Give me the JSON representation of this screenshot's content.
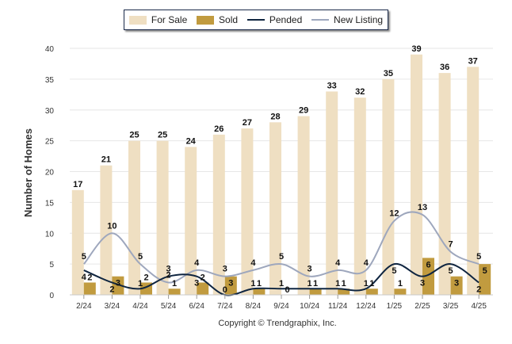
{
  "legend": {
    "for_sale": "For Sale",
    "sold": "Sold",
    "pended": "Pended",
    "new_listing": "New Listing"
  },
  "colors": {
    "for_sale": "#efdfc2",
    "sold": "#c19b3f",
    "pended": "#0f2540",
    "new_listing": "#9ea7bd",
    "grid": "#e6e6e6",
    "text": "#222222"
  },
  "copyright": "Copyright © Trendgraphix, Inc.",
  "chart_data": {
    "type": "bar",
    "ylabel": "Number of Homes",
    "xlabel": "",
    "ylim": [
      0,
      40
    ],
    "yticks": [
      0,
      5,
      10,
      15,
      20,
      25,
      30,
      35,
      40
    ],
    "grid": true,
    "legend_position": "top-center",
    "categories": [
      "2/24",
      "3/24",
      "4/24",
      "5/24",
      "6/24",
      "7/24",
      "8/24",
      "9/24",
      "10/24",
      "11/24",
      "12/24",
      "1/25",
      "2/25",
      "3/25",
      "4/25"
    ],
    "series": [
      {
        "name": "For Sale",
        "kind": "bar",
        "values": [
          17,
          21,
          25,
          25,
          24,
          26,
          27,
          28,
          29,
          33,
          32,
          35,
          39,
          36,
          37
        ]
      },
      {
        "name": "Sold",
        "kind": "bar",
        "values": [
          2,
          3,
          2,
          1,
          2,
          3,
          1,
          0,
          1,
          1,
          1,
          1,
          6,
          3,
          5
        ]
      },
      {
        "name": "Pended",
        "kind": "line",
        "values": [
          4,
          2,
          1,
          3,
          3,
          0,
          1,
          1,
          1,
          1,
          1,
          5,
          3,
          5,
          2
        ]
      },
      {
        "name": "New Listing",
        "kind": "line",
        "values": [
          5,
          10,
          5,
          2,
          4,
          3,
          4,
          5,
          3,
          4,
          4,
          12,
          13,
          7,
          5
        ]
      }
    ]
  }
}
